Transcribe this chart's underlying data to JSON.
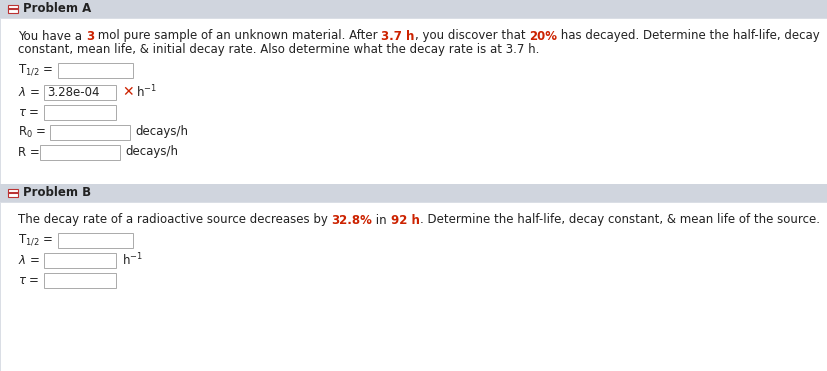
{
  "bg_color": "#e8ecf0",
  "white": "#ffffff",
  "header_bg": "#d0d5de",
  "text_color": "#222222",
  "red_color": "#cc2200",
  "box_edge": "#aaaaaa",
  "problem_a_header": "Problem A",
  "problem_b_header": "Problem B",
  "problem_a_line1_parts": [
    [
      "You have a ",
      false,
      "#222222"
    ],
    [
      "3",
      true,
      "#cc2200"
    ],
    [
      " mol pure sample of an unknown material. After ",
      false,
      "#222222"
    ],
    [
      "3.7 h",
      true,
      "#cc2200"
    ],
    [
      ", you discover that ",
      false,
      "#222222"
    ],
    [
      "20%",
      true,
      "#cc2200"
    ],
    [
      " has decayed. Determine the half-life, decay",
      false,
      "#222222"
    ]
  ],
  "problem_a_line2": "constant, mean life, & initial decay rate. Also determine what the decay rate is at 3.7 h.",
  "lambda_value": "3.28e-04",
  "problem_b_line1_parts": [
    [
      "The decay rate of a radioactive source decreases by ",
      false,
      "#222222"
    ],
    [
      "32.8%",
      true,
      "#cc2200"
    ],
    [
      " in ",
      false,
      "#222222"
    ],
    [
      "92 h",
      true,
      "#cc2200"
    ],
    [
      ". Determine the half-life, decay constant, & mean life of the source.",
      false,
      "#222222"
    ]
  ],
  "font_size": 8.5,
  "label_font_size": 8.5
}
